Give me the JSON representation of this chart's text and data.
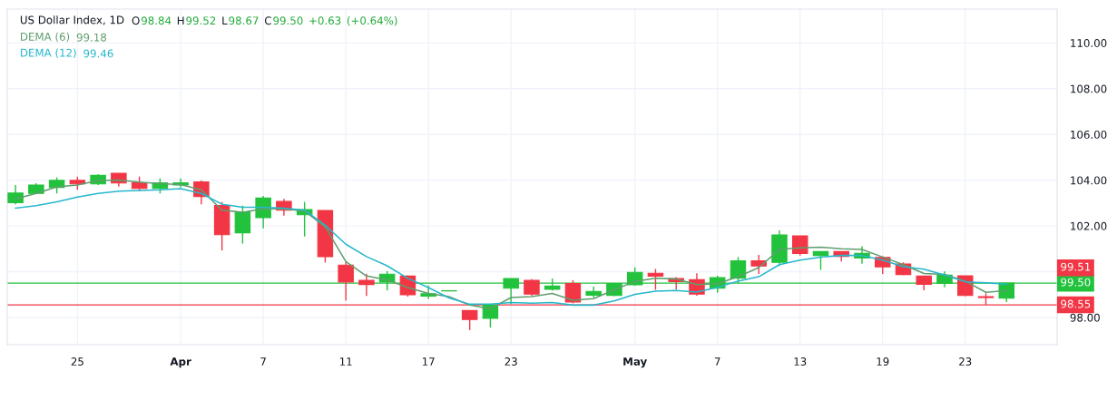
{
  "chart_data": {
    "type": "candlestick",
    "title": "US Dollar Index, 1D",
    "subtitle": "O98.84 H99.52 L98.67 C99.50 +0.63 (+0.64%)",
    "annotations": [
      "99.18",
      "99.46",
      "99.51"
    ],
    "categories": [
      null,
      null,
      null,
      "25",
      null,
      null,
      null,
      null,
      "Apr",
      null,
      null,
      null,
      "7",
      null,
      null,
      null,
      "11",
      null,
      null,
      null,
      "17",
      null,
      null,
      null,
      "23",
      null,
      null,
      null,
      null,
      null,
      "May",
      null,
      null,
      null,
      "7",
      null,
      null,
      null,
      "13",
      null,
      null,
      null,
      "19",
      null,
      null,
      null,
      "23",
      null,
      null
    ],
    "ohlc": [
      [
        103.02,
        103.79,
        102.95,
        103.44
      ],
      [
        103.42,
        103.87,
        103.39,
        103.79
      ],
      [
        103.68,
        104.12,
        103.42,
        103.99
      ],
      [
        103.99,
        104.15,
        103.58,
        103.84
      ],
      [
        103.84,
        104.26,
        103.79,
        104.21
      ],
      [
        104.3,
        104.3,
        103.72,
        103.88
      ],
      [
        103.89,
        104.16,
        103.52,
        103.64
      ],
      [
        103.64,
        104.08,
        103.42,
        103.89
      ],
      [
        103.79,
        104.08,
        103.68,
        103.89
      ],
      [
        103.92,
        103.99,
        102.95,
        103.28
      ],
      [
        102.89,
        103.05,
        100.93,
        101.62
      ],
      [
        101.7,
        102.89,
        101.23,
        102.62
      ],
      [
        102.36,
        103.31,
        101.89,
        103.22
      ],
      [
        103.07,
        103.18,
        102.45,
        102.69
      ],
      [
        102.49,
        103.05,
        101.54,
        102.72
      ],
      [
        102.68,
        102.68,
        100.4,
        100.66
      ],
      [
        100.29,
        100.42,
        98.74,
        99.55
      ],
      [
        99.62,
        99.91,
        98.94,
        99.44
      ],
      [
        99.55,
        100.03,
        99.18,
        99.89
      ],
      [
        99.81,
        99.84,
        98.91,
        98.99
      ],
      [
        98.93,
        99.4,
        98.81,
        99.04
      ],
      [
        99.16,
        99.18,
        99.16,
        99.17
      ],
      [
        98.3,
        98.3,
        97.45,
        97.91
      ],
      [
        97.96,
        98.54,
        97.56,
        98.54
      ],
      [
        99.28,
        99.7,
        98.58,
        99.7
      ],
      [
        99.62,
        99.67,
        98.95,
        99.02
      ],
      [
        99.23,
        99.7,
        99.17,
        99.38
      ],
      [
        99.48,
        99.63,
        98.62,
        98.68
      ],
      [
        98.97,
        99.35,
        98.87,
        99.14
      ],
      [
        98.96,
        99.5,
        98.93,
        99.48
      ],
      [
        99.43,
        100.19,
        99.39,
        99.97
      ],
      [
        99.93,
        100.12,
        99.21,
        99.81
      ],
      [
        99.7,
        99.76,
        99.22,
        99.57
      ],
      [
        99.65,
        99.93,
        98.95,
        99.02
      ],
      [
        99.28,
        99.82,
        99.08,
        99.74
      ],
      [
        99.72,
        100.64,
        99.48,
        100.48
      ],
      [
        100.48,
        100.74,
        99.9,
        100.25
      ],
      [
        100.41,
        101.81,
        100.25,
        101.61
      ],
      [
        101.57,
        101.57,
        100.71,
        100.8
      ],
      [
        100.71,
        100.88,
        100.08,
        100.88
      ],
      [
        100.88,
        100.88,
        100.45,
        100.67
      ],
      [
        100.6,
        101.11,
        100.35,
        100.8
      ],
      [
        100.62,
        100.68,
        99.9,
        100.21
      ],
      [
        100.34,
        100.41,
        99.85,
        99.88
      ],
      [
        99.81,
        99.81,
        99.19,
        99.45
      ],
      [
        99.49,
        100.01,
        99.32,
        99.85
      ],
      [
        99.82,
        99.82,
        98.93,
        98.96
      ],
      [
        98.91,
        99.06,
        98.56,
        98.87
      ],
      [
        98.84,
        99.52,
        98.67,
        99.5
      ]
    ],
    "colors": [
      "#22c23c",
      "#22c23c",
      "#22c23c",
      "#f23645",
      "#22c23c",
      "#f23645",
      "#f23645",
      "#22c23c",
      "#22c23c",
      "#f23645",
      "#f23645",
      "#22c23c",
      "#22c23c",
      "#f23645",
      "#22c23c",
      "#f23645",
      "#f23645",
      "#f23645",
      "#22c23c",
      "#f23645",
      "#22c23c",
      "#22c23c",
      "#f23645",
      "#22c23c",
      "#22c23c",
      "#f23645",
      "#22c23c",
      "#f23645",
      "#22c23c",
      "#22c23c",
      "#22c23c",
      "#f23645",
      "#f23645",
      "#f23645",
      "#22c23c",
      "#22c23c",
      "#f23645",
      "#22c23c",
      "#f23645",
      "#22c23c",
      "#f23645",
      "#22c23c",
      "#f23645",
      "#f23645",
      "#f23645",
      "#22c23c",
      "#f23645",
      "#f23645",
      "#22c23c"
    ],
    "series": [
      {
        "name": "DEMA (6)",
        "type": "line",
        "color": "#5f9e6e",
        "values": [
          103.18,
          103.42,
          103.71,
          103.79,
          103.99,
          104.01,
          103.92,
          103.85,
          103.81,
          103.58,
          102.69,
          102.6,
          102.75,
          102.75,
          102.65,
          101.96,
          100.44,
          99.81,
          99.64,
          99.31,
          99.05,
          98.91,
          98.54,
          98.38,
          98.87,
          98.91,
          99.05,
          98.75,
          98.82,
          99.21,
          99.58,
          99.71,
          99.68,
          99.44,
          99.48,
          99.78,
          100.18,
          100.97,
          101.04,
          101.07,
          101.0,
          100.97,
          100.64,
          100.31,
          99.92,
          99.88,
          99.59,
          99.1,
          99.18
        ]
      },
      {
        "name": "DEMA (12)",
        "type": "line",
        "color": "#26b7cc",
        "values": [
          102.78,
          102.89,
          103.05,
          103.26,
          103.42,
          103.52,
          103.55,
          103.58,
          103.63,
          103.42,
          102.95,
          102.82,
          102.82,
          102.78,
          102.69,
          102.03,
          101.2,
          100.66,
          100.26,
          99.71,
          99.31,
          98.85,
          98.58,
          98.58,
          98.65,
          98.62,
          98.65,
          98.54,
          98.54,
          98.72,
          99.01,
          99.15,
          99.18,
          99.11,
          99.32,
          99.59,
          99.78,
          100.31,
          100.51,
          100.64,
          100.71,
          100.71,
          100.51,
          100.22,
          100.11,
          99.85,
          99.56,
          99.52,
          99.46
        ]
      }
    ],
    "ylim": [
      96.81,
      111.48
    ],
    "yticks": [
      {
        "value": 98,
        "label": "98.00"
      },
      {
        "value": 100,
        "label": null
      },
      {
        "value": 102,
        "label": "102.00"
      },
      {
        "value": 104,
        "label": "104.00"
      },
      {
        "value": 106,
        "label": "106.00"
      },
      {
        "value": 108,
        "label": "108.00"
      },
      {
        "value": 110,
        "label": "110.00"
      }
    ],
    "ref_lines": [
      {
        "axis": "y",
        "value": 99.5,
        "label": "99.50",
        "color": "#22c23c",
        "line_style": "solid"
      },
      {
        "axis": "y",
        "value": 98.55,
        "label": "98.55",
        "color": "#f23645",
        "line_style": "solid"
      }
    ],
    "grid": true,
    "legend": "top left"
  }
}
